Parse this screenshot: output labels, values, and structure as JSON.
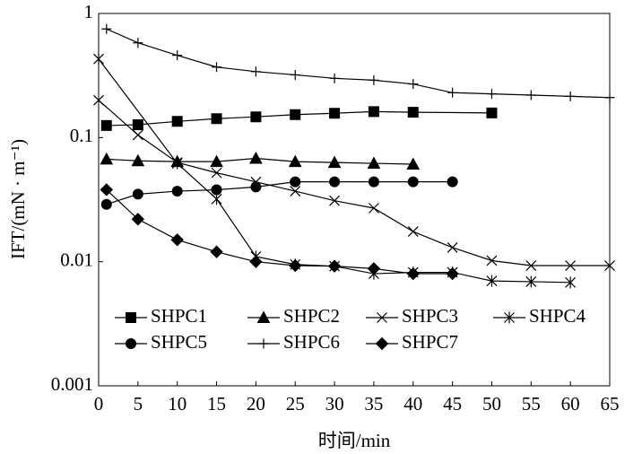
{
  "chart_data": {
    "type": "line",
    "x_label": "时间/min",
    "y_label": "IFT/(mN · m⁻¹)",
    "log_y": true,
    "xlim": [
      0,
      65
    ],
    "xticks": [
      0,
      5,
      10,
      15,
      20,
      25,
      30,
      35,
      40,
      45,
      50,
      55,
      60,
      65
    ],
    "ylim": [
      0.001,
      1
    ],
    "yticks": [
      0.001,
      0.01,
      0.1,
      1
    ],
    "color": "#000000",
    "series": [
      {
        "name": "SHPC1",
        "marker": "square",
        "x": [
          1,
          5,
          10,
          15,
          20,
          25,
          30,
          35,
          40,
          50
        ],
        "values": [
          0.125,
          0.127,
          0.135,
          0.142,
          0.147,
          0.153,
          0.157,
          0.162,
          0.16,
          0.158
        ]
      },
      {
        "name": "SHPC2",
        "marker": "triangle",
        "x": [
          1,
          5,
          10,
          15,
          20,
          25,
          30,
          35,
          40
        ],
        "values": [
          0.067,
          0.065,
          0.064,
          0.064,
          0.068,
          0.064,
          0.063,
          0.062,
          0.061
        ]
      },
      {
        "name": "SHPC3",
        "marker": "cross",
        "x": [
          0,
          5,
          10,
          15,
          20,
          25,
          30,
          35,
          40,
          45,
          50,
          55,
          60,
          65
        ],
        "values": [
          0.2,
          0.105,
          0.063,
          0.052,
          0.044,
          0.037,
          0.031,
          0.027,
          0.0175,
          0.013,
          0.0102,
          0.0093,
          0.0093,
          0.0093
        ]
      },
      {
        "name": "SHPC4",
        "marker": "star",
        "x": [
          0,
          10,
          15,
          20,
          25,
          30,
          35,
          40,
          45,
          50,
          55,
          60
        ],
        "values": [
          0.43,
          0.062,
          0.032,
          0.011,
          0.0095,
          0.0092,
          0.008,
          0.0082,
          0.0082,
          0.007,
          0.0069,
          0.0068
        ]
      },
      {
        "name": "SHPC5",
        "marker": "circle",
        "x": [
          1,
          5,
          10,
          15,
          20,
          25,
          30,
          35,
          40,
          45
        ],
        "values": [
          0.029,
          0.035,
          0.037,
          0.038,
          0.04,
          0.044,
          0.044,
          0.044,
          0.044,
          0.044
        ]
      },
      {
        "name": "SHPC6",
        "marker": "plus",
        "x": [
          1,
          5,
          10,
          15,
          20,
          25,
          30,
          35,
          40,
          45,
          50,
          55,
          60,
          65
        ],
        "values": [
          0.75,
          0.58,
          0.46,
          0.37,
          0.34,
          0.32,
          0.3,
          0.29,
          0.27,
          0.23,
          0.225,
          0.22,
          0.215,
          0.21
        ]
      },
      {
        "name": "SHPC7",
        "marker": "diamond",
        "x": [
          1,
          5,
          10,
          15,
          20,
          25,
          30,
          35,
          40,
          45
        ],
        "values": [
          0.038,
          0.022,
          0.015,
          0.012,
          0.01,
          0.0093,
          0.0092,
          0.0088,
          0.008,
          0.008
        ]
      }
    ]
  }
}
